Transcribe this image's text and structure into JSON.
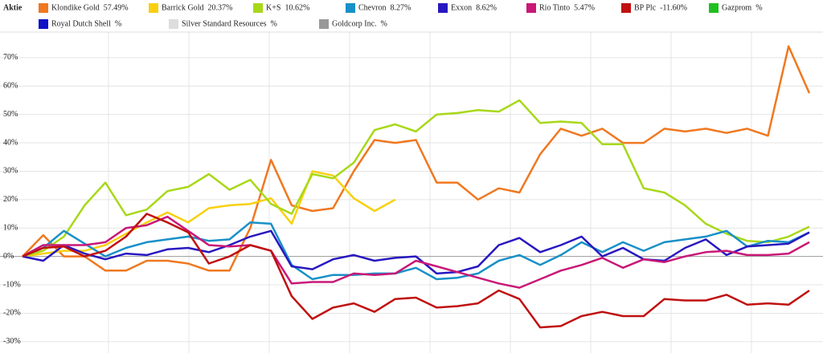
{
  "chart_data": {
    "type": "line",
    "legend_title": "Aktie",
    "ylim": [
      -34,
      79
    ],
    "yticks": [
      {
        "value": -30,
        "label": "-30%"
      },
      {
        "value": -20,
        "label": "-20%"
      },
      {
        "value": -10,
        "label": "-10%"
      },
      {
        "value": 0,
        "label": "0%"
      },
      {
        "value": 10,
        "label": "10%"
      },
      {
        "value": 20,
        "label": "20%"
      },
      {
        "value": 30,
        "label": "30%"
      },
      {
        "value": 40,
        "label": "40%"
      },
      {
        "value": 50,
        "label": "50%"
      },
      {
        "value": 60,
        "label": "60%"
      },
      {
        "value": 70,
        "label": "70%"
      }
    ],
    "grid": true,
    "series": [
      {
        "name": "Klondike Gold",
        "legend_value": "57.49%",
        "color": "#f07820",
        "values": [
          0,
          7.5,
          0,
          0,
          -5,
          -5,
          -1.5,
          -1.5,
          -2.5,
          -5,
          -5,
          10,
          34,
          18,
          16,
          17,
          30,
          41,
          40,
          41,
          26,
          26,
          20,
          24,
          22.5,
          36,
          45,
          42.5,
          45,
          40,
          40,
          45,
          44,
          45,
          43.5,
          45,
          42.5,
          74,
          57.5
        ]
      },
      {
        "name": "Barrick Gold",
        "legend_value": "20.37%",
        "color": "#f8d010",
        "values": [
          0,
          1,
          2,
          2,
          4,
          8,
          12,
          15.5,
          12,
          17,
          18,
          18.5,
          20.5,
          11.5,
          30,
          28.5,
          20.5,
          16,
          20,
          null,
          null,
          null,
          null,
          null,
          null,
          null,
          null,
          null,
          null,
          null,
          null,
          null,
          null,
          null,
          null,
          null,
          null,
          null,
          null
        ]
      },
      {
        "name": "K+S",
        "legend_value": "10.62%",
        "color": "#a8d818",
        "values": [
          0,
          2,
          7,
          18,
          26,
          14.5,
          16.5,
          23,
          24.5,
          29,
          23.5,
          27,
          18.5,
          15,
          29,
          27.5,
          33,
          44.5,
          46.5,
          44,
          50,
          50.5,
          51.5,
          51,
          55,
          47,
          47.5,
          47,
          39.5,
          39.5,
          24,
          22.5,
          18,
          11.5,
          8,
          5.5,
          5,
          7,
          10.5
        ]
      },
      {
        "name": "Chevron",
        "legend_value": "8.27%",
        "color": "#1890c8",
        "values": [
          0,
          3,
          9,
          4.5,
          0,
          3,
          5,
          6,
          7,
          5.5,
          6,
          12,
          11.5,
          -3,
          -8,
          -6.5,
          -6.5,
          -6,
          -6,
          -4,
          -8,
          -7.5,
          -6,
          -1.5,
          0.5,
          -3,
          0.5,
          5,
          1.5,
          5,
          2,
          5,
          6,
          7,
          9,
          3.5,
          5.5,
          5,
          8.5
        ]
      },
      {
        "name": "Exxon",
        "legend_value": "8.62%",
        "color": "#2818c0",
        "values": [
          0,
          -1.5,
          4,
          1,
          -1,
          1,
          0.5,
          2.5,
          3,
          1.5,
          4,
          7,
          9,
          -3.5,
          -4.5,
          -1,
          0.5,
          -1.5,
          -0.5,
          0,
          -6,
          -5.5,
          -3.5,
          4,
          6.5,
          1.5,
          4,
          7,
          0,
          3,
          -1,
          -1.5,
          3,
          6,
          0.5,
          3.5,
          4,
          4.5,
          8.5
        ]
      },
      {
        "name": "Rio Tinto",
        "legend_value": "5.47%",
        "color": "#c81878",
        "values": [
          0,
          4,
          4,
          4,
          5,
          10,
          11,
          14,
          9,
          4,
          3.5,
          4,
          2,
          -9.5,
          -9,
          -9,
          -6,
          -6.5,
          -6,
          -1.5,
          -3.5,
          -5.5,
          -7.5,
          -9.5,
          -11,
          -8,
          -5,
          -3,
          -0.5,
          -4,
          -1,
          -2,
          0,
          1.5,
          2,
          0.5,
          0.5,
          1,
          5
        ]
      },
      {
        "name": "BP Plc",
        "legend_value": "-11.60%",
        "color": "#c01010",
        "values": [
          0,
          3,
          3.5,
          0,
          2,
          7,
          15,
          12,
          8.5,
          -2.5,
          0,
          4,
          2,
          -14,
          -22,
          -18,
          -16.5,
          -19.5,
          -15,
          -14.5,
          -18,
          -17.5,
          -16.5,
          -12,
          -15,
          -25,
          -24.5,
          -21,
          -19.5,
          -21,
          -21,
          -15,
          -15.5,
          -15.5,
          -13.5,
          -17,
          -16.5,
          -17,
          -12
        ]
      },
      {
        "name": "Gazprom",
        "legend_value": "%",
        "color": "#20c020"
      },
      {
        "name": "Royal Dutch Shell",
        "legend_value": "%",
        "color": "#1010c8"
      },
      {
        "name": "Silver Standard Resources",
        "legend_value": "%",
        "color": "#dddddd"
      },
      {
        "name": "Goldcorp Inc.",
        "legend_value": "%",
        "color": "#999999"
      }
    ]
  }
}
